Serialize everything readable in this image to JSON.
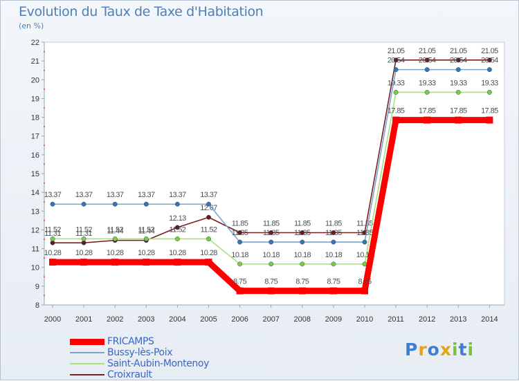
{
  "chart_data": {
    "type": "line",
    "title": "Evolution du Taux de Taxe d'Habitation",
    "subtitle": "(en %)",
    "x": [
      "2000",
      "2001",
      "2002",
      "2003",
      "2004",
      "2005",
      "2006",
      "2007",
      "2008",
      "2009",
      "2010",
      "2011",
      "2012",
      "2013",
      "2014"
    ],
    "ylim": [
      8,
      22
    ],
    "yticks": [
      8,
      9,
      10,
      11,
      12,
      13,
      14,
      15,
      16,
      17,
      18,
      19,
      20,
      21,
      22
    ],
    "grid": false,
    "legend_position": "bottom-left",
    "series": [
      {
        "name": "Croixrault",
        "color": "#7a1f1f",
        "marker": "#6b1a1a",
        "values": [
          11.31,
          11.31,
          11.44,
          11.44,
          12.13,
          12.67,
          11.85,
          11.85,
          11.85,
          11.85,
          11.85,
          21.05,
          21.05,
          21.05,
          21.05
        ],
        "labels": [
          "11.31",
          "11.31",
          "11.44",
          "11.44",
          "12.13",
          "12.67",
          "11.85",
          "11.85",
          "11.85",
          "11.85",
          "11.85",
          "21.05",
          "21.05",
          "21.05",
          "21.05"
        ]
      },
      {
        "name": "Saint-Aubin-Montenoy",
        "color": "#a8e07a",
        "marker": "#7ccc3c",
        "values": [
          11.52,
          11.52,
          11.52,
          11.52,
          11.52,
          11.52,
          10.18,
          10.18,
          10.18,
          10.18,
          10.18,
          19.33,
          19.33,
          19.33,
          19.33
        ],
        "labels": [
          "11.52",
          "11.52",
          "11.52",
          "11.52",
          "11.52",
          "11.52",
          "10.18",
          "10.18",
          "10.18",
          "10.18",
          "10.18",
          "19.33",
          "19.33",
          "19.33",
          "19.33"
        ]
      },
      {
        "name": "Bussy-lès-Poix",
        "color": "#79a4cc",
        "marker": "#3a74b0",
        "values": [
          13.37,
          13.37,
          13.37,
          13.37,
          13.37,
          13.37,
          11.35,
          11.35,
          11.35,
          11.35,
          11.35,
          20.54,
          20.54,
          20.54,
          20.54
        ],
        "labels": [
          "13.37",
          "13.37",
          "13.37",
          "13.37",
          "13.37",
          "13.37",
          "11.35",
          "11.35",
          "11.35",
          "11.35",
          "11.35",
          "20.54",
          "20.54",
          "20.54",
          "20.54"
        ]
      },
      {
        "name": "FRICAMPS",
        "color": "#ff0000",
        "marker": "#ff0000",
        "values": [
          10.28,
          10.28,
          10.28,
          10.28,
          10.28,
          10.28,
          8.75,
          8.75,
          8.75,
          8.75,
          8.75,
          17.85,
          17.85,
          17.85,
          17.85
        ],
        "labels": [
          "10.28",
          "10.28",
          "10.28",
          "10.28",
          "10.28",
          "10.28",
          "8.75",
          "8.75",
          "8.75",
          "8.75",
          "8.75",
          "17.85",
          "17.85",
          "17.85",
          "17.85"
        ]
      }
    ]
  },
  "legend": {
    "items": [
      {
        "label": "FRICAMPS",
        "color": "#ff0000"
      },
      {
        "label": "Bussy-lès-Poix",
        "color": "#79a4cc"
      },
      {
        "label": "Saint-Aubin-Montenoy",
        "color": "#a8e07a"
      },
      {
        "label": "Croixrault",
        "color": "#7a1f1f"
      }
    ]
  },
  "brand": {
    "letters": [
      {
        "char": "P",
        "color": "#3d7fd1"
      },
      {
        "char": "r",
        "color": "#e8a317"
      },
      {
        "char": "o",
        "color": "#3d7fd1"
      },
      {
        "char": "x",
        "color": "#e8a317"
      },
      {
        "char": "i",
        "color": "#7ac143"
      },
      {
        "char": "t",
        "color": "#3d7fd1"
      },
      {
        "char": "i",
        "color": "#7ac143"
      }
    ]
  }
}
